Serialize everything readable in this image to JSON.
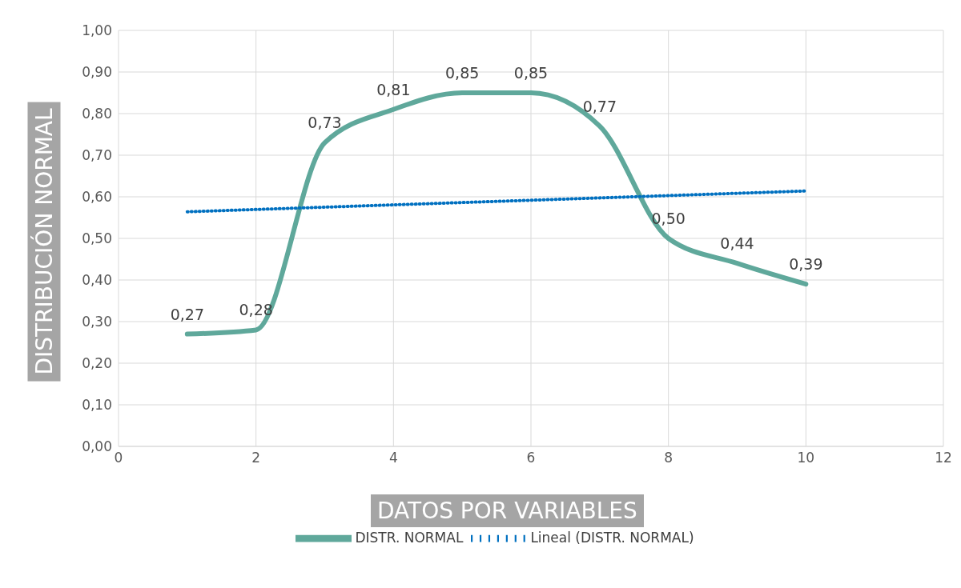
{
  "chart_data": {
    "type": "line",
    "xlabel": "DATOS POR VARIABLES",
    "ylabel": "DISTRIBUCIÓN NORMAL",
    "xlim": [
      0,
      12
    ],
    "xticks": [
      0,
      2,
      4,
      6,
      8,
      10,
      12
    ],
    "ylim": [
      0,
      1
    ],
    "yticks": [
      {
        "value": 0,
        "label": "0,00"
      },
      {
        "value": 0.1,
        "label": "0,10"
      },
      {
        "value": 0.2,
        "label": "0,20"
      },
      {
        "value": 0.3,
        "label": "0,30"
      },
      {
        "value": 0.4,
        "label": "0,40"
      },
      {
        "value": 0.5,
        "label": "0,50"
      },
      {
        "value": 0.6,
        "label": "0,60"
      },
      {
        "value": 0.7,
        "label": "0,70"
      },
      {
        "value": 0.8,
        "label": "0,80"
      },
      {
        "value": 0.9,
        "label": "0,90"
      },
      {
        "value": 1,
        "label": "1,00"
      }
    ],
    "grid": true,
    "legend": "bottom",
    "marker": "none",
    "series": [
      {
        "name": "DISTR. NORMAL",
        "type": "line",
        "color": "#5fa89b",
        "line_style": "solid",
        "x": [
          1,
          2,
          3,
          4,
          5,
          6,
          7,
          8,
          9,
          10
        ],
        "values": [
          0.27,
          0.28,
          0.73,
          0.81,
          0.85,
          0.85,
          0.77,
          0.5,
          0.44,
          0.39
        ],
        "value_labels": [
          "0,27",
          "0,28",
          "0,73",
          "0,81",
          "0,85",
          "0,85",
          "0,77",
          "0,50",
          "0,44",
          "0,39"
        ]
      },
      {
        "name": "Lineal (DISTR. NORMAL)",
        "type": "line",
        "color": "#0070c0",
        "line_style": "dotted",
        "x": [
          1,
          10
        ],
        "values": [
          0.564,
          0.614
        ]
      }
    ]
  }
}
